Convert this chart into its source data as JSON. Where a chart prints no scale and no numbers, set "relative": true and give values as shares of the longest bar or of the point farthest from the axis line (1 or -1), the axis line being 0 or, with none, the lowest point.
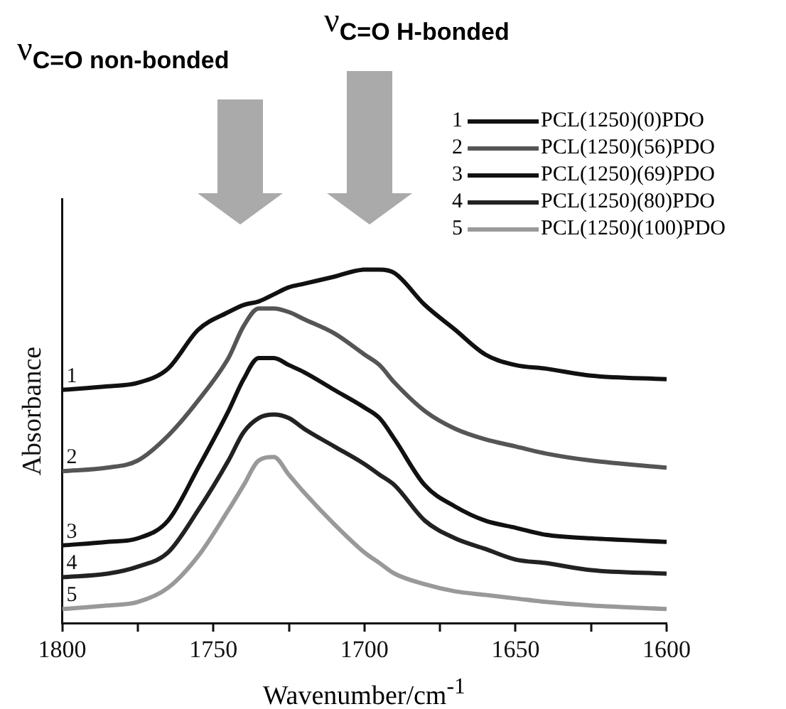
{
  "chart_data": {
    "type": "line",
    "relative": true,
    "xlabel": "Wavenumber/cm$^{-1}$",
    "ylabel": "Absorbance",
    "x": [
      1800,
      1785,
      1775,
      1765,
      1755,
      1745,
      1740,
      1735,
      1730,
      1725,
      1720,
      1710,
      1700,
      1695,
      1690,
      1680,
      1670,
      1660,
      1650,
      1640,
      1625,
      1600
    ],
    "xlim": [
      1800,
      1600
    ],
    "xticks": [
      1800,
      {
        "value": 1775,
        "label": null
      },
      1750,
      {
        "value": 1725,
        "label": null
      },
      1700,
      {
        "value": 1675,
        "label": null
      },
      1650,
      {
        "value": 1625,
        "label": null
      },
      1600
    ],
    "series": [
      {
        "name": "PCL(1250)(0)PDO",
        "color": "#111111",
        "values": [
          0.66,
          0.67,
          0.68,
          0.72,
          0.83,
          0.88,
          0.9,
          0.91,
          0.93,
          0.95,
          0.96,
          0.98,
          1,
          1,
          0.99,
          0.9,
          0.83,
          0.76,
          0.73,
          0.72,
          0.7,
          0.69
        ]
      },
      {
        "name": "PCL(1250)(56)PDO",
        "color": "#555555",
        "values": [
          0.43,
          0.44,
          0.46,
          0.53,
          0.63,
          0.75,
          0.84,
          0.89,
          0.89,
          0.88,
          0.86,
          0.82,
          0.76,
          0.73,
          0.68,
          0.6,
          0.55,
          0.52,
          0.5,
          0.48,
          0.46,
          0.44
        ]
      },
      {
        "name": "PCL(1250)(69)PDO",
        "color": "#111111",
        "values": [
          0.22,
          0.23,
          0.24,
          0.29,
          0.44,
          0.6,
          0.69,
          0.75,
          0.75,
          0.73,
          0.71,
          0.66,
          0.61,
          0.58,
          0.52,
          0.39,
          0.33,
          0.29,
          0.27,
          0.25,
          0.24,
          0.23
        ]
      },
      {
        "name": "PCL(1250)(80)PDO",
        "color": "#222222",
        "values": [
          0.13,
          0.14,
          0.16,
          0.2,
          0.32,
          0.46,
          0.54,
          0.58,
          0.59,
          0.58,
          0.55,
          0.5,
          0.45,
          0.42,
          0.39,
          0.29,
          0.24,
          0.21,
          0.18,
          0.17,
          0.15,
          0.14
        ]
      },
      {
        "name": "PCL(1250)(100)PDO",
        "color": "#999999",
        "values": [
          0.04,
          0.05,
          0.06,
          0.1,
          0.19,
          0.32,
          0.39,
          0.46,
          0.47,
          0.42,
          0.37,
          0.28,
          0.2,
          0.17,
          0.14,
          0.11,
          0.09,
          0.08,
          0.07,
          0.06,
          0.05,
          0.04
        ]
      }
    ],
    "annotations": [
      "1",
      "2",
      "3",
      "4",
      "5",
      "ν$_{C=O non-bonded}$",
      "ν$_{C=O H-bonded}$"
    ],
    "legend": "top right",
    "grid": false,
    "marker": "none",
    "line_style": "solid"
  }
}
